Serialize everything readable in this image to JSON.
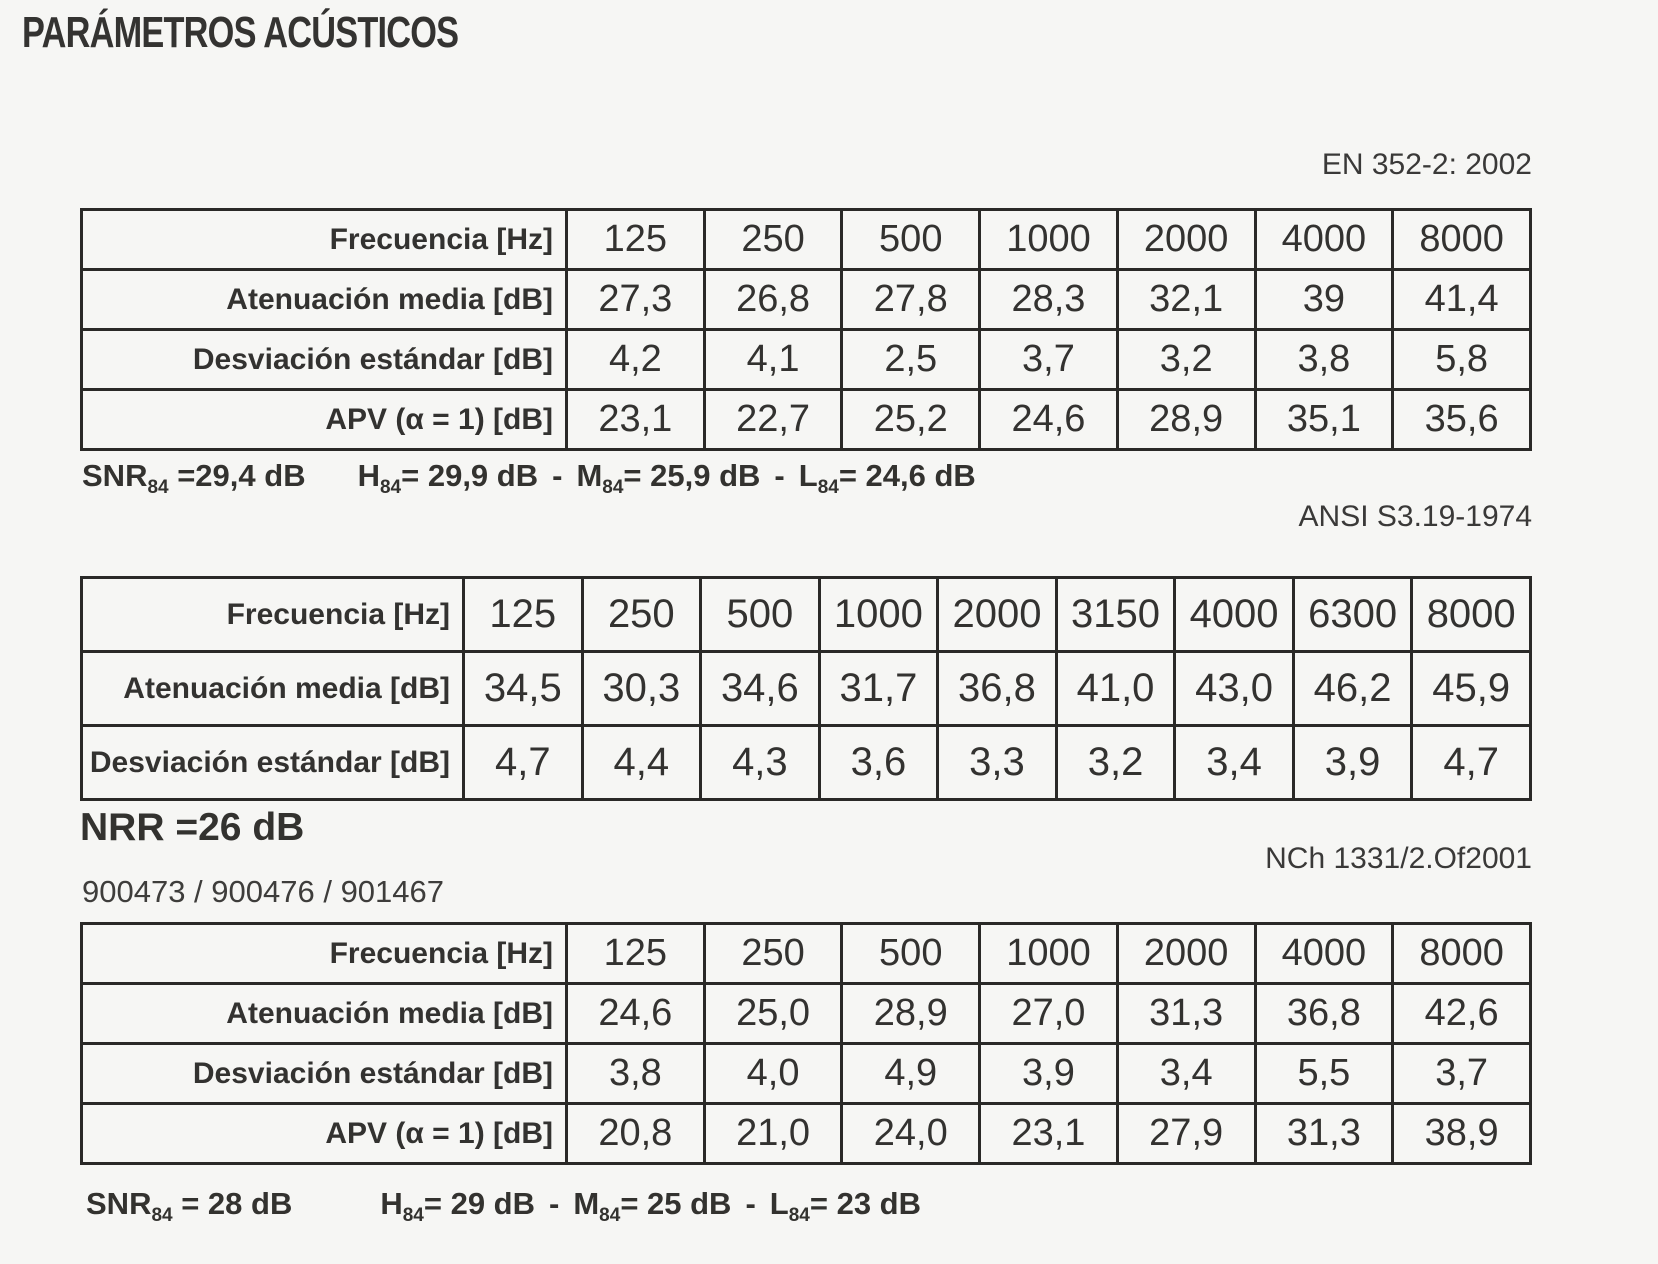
{
  "title": "PARÁMETROS ACÚSTICOS",
  "colors": {
    "ink": "#333230",
    "background": "#f6f6f4",
    "border": "#2a2927"
  },
  "tables": [
    {
      "standard": "EN 352-2: 2002",
      "rows": [
        {
          "label": "Frecuencia [Hz]",
          "values": [
            "125",
            "250",
            "500",
            "1000",
            "2000",
            "4000",
            "8000"
          ]
        },
        {
          "label": "Atenuación media [dB]",
          "values": [
            "27,3",
            "26,8",
            "27,8",
            "28,3",
            "32,1",
            "39",
            "41,4"
          ]
        },
        {
          "label": "Desviación estándar [dB]",
          "values": [
            "4,2",
            "4,1",
            "2,5",
            "3,7",
            "3,2",
            "3,8",
            "5,8"
          ]
        },
        {
          "label": "APV (α = 1) [dB]",
          "values": [
            "23,1",
            "22,7",
            "25,2",
            "24,6",
            "28,9",
            "35,1",
            "35,6"
          ]
        }
      ]
    },
    {
      "standard": "ANSI S3.19-1974",
      "rows": [
        {
          "label": "Frecuencia [Hz]",
          "values": [
            "125",
            "250",
            "500",
            "1000",
            "2000",
            "3150",
            "4000",
            "6300",
            "8000"
          ]
        },
        {
          "label": "Atenuación media [dB]",
          "values": [
            "34,5",
            "30,3",
            "34,6",
            "31,7",
            "36,8",
            "41,0",
            "43,0",
            "46,2",
            "45,9"
          ]
        },
        {
          "label": "Desviación estándar [dB]",
          "values": [
            "4,7",
            "4,4",
            "4,3",
            "3,6",
            "3,3",
            "3,2",
            "3,4",
            "3,9",
            "4,7"
          ]
        }
      ]
    },
    {
      "standard": "NCh 1331/2.Of2001",
      "rows": [
        {
          "label": "Frecuencia [Hz]",
          "values": [
            "125",
            "250",
            "500",
            "1000",
            "2000",
            "4000",
            "8000"
          ]
        },
        {
          "label": "Atenuación media [dB]",
          "values": [
            "24,6",
            "25,0",
            "28,9",
            "27,0",
            "31,3",
            "36,8",
            "42,6"
          ]
        },
        {
          "label": "Desviación estándar [dB]",
          "values": [
            "3,8",
            "4,0",
            "4,9",
            "3,9",
            "3,4",
            "5,5",
            "3,7"
          ]
        },
        {
          "label": "APV (α = 1) [dB]",
          "values": [
            "20,8",
            "21,0",
            "24,0",
            "23,1",
            "27,9",
            "31,3",
            "38,9"
          ]
        }
      ]
    }
  ],
  "summary_en": {
    "dash": "-",
    "terms": [
      {
        "base": "SNR",
        "sub": "84",
        "val": " =29,4 dB"
      },
      {
        "base": "H",
        "sub": "84",
        "val": "= 29,9 dB"
      },
      {
        "base": "M",
        "sub": "84",
        "val": "= 25,9 dB"
      },
      {
        "base": "L",
        "sub": "84",
        "val": "= 24,6 dB"
      }
    ]
  },
  "nrr": "NRR =26 dB",
  "codes": "900473 / 900476 / 901467",
  "summary_nch": {
    "dash": "-",
    "terms": [
      {
        "base": "SNR",
        "sub": "84",
        "val": " = 28 dB"
      },
      {
        "base": "H",
        "sub": "84",
        "val": "= 29 dB"
      },
      {
        "base": "M",
        "sub": "84",
        "val": "= 25 dB"
      },
      {
        "base": "L",
        "sub": "84",
        "val": "= 23 dB"
      }
    ]
  }
}
